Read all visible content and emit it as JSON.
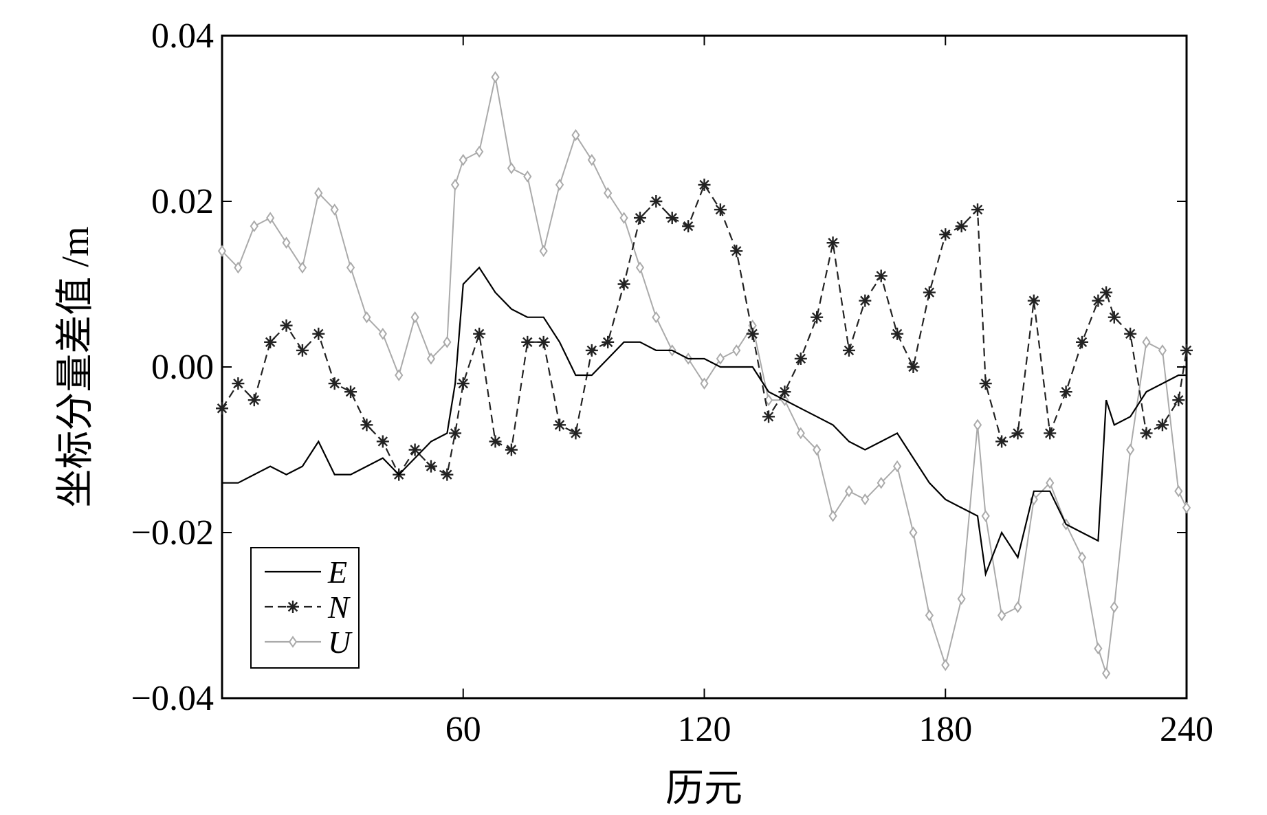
{
  "chart_data": {
    "type": "line",
    "xlabel": "历元",
    "ylabel": "坐标分量差值 /m",
    "xlim": [
      0,
      240
    ],
    "ylim": [
      -0.04,
      0.04
    ],
    "x_ticks": [
      60,
      120,
      180,
      240
    ],
    "x_tick_labels": [
      "60",
      "120",
      "180",
      "240"
    ],
    "y_ticks": [
      0.04,
      0.02,
      0.0,
      -0.02,
      -0.04
    ],
    "y_tick_labels": [
      "0.04",
      "0.02",
      "0.00",
      "−0.02",
      "−0.04"
    ],
    "grid": false,
    "legend_position": "lower-left",
    "x": [
      0,
      4,
      8,
      12,
      16,
      20,
      24,
      28,
      32,
      36,
      40,
      44,
      48,
      52,
      56,
      58,
      60,
      64,
      68,
      72,
      76,
      80,
      84,
      88,
      92,
      96,
      100,
      104,
      108,
      112,
      116,
      120,
      124,
      128,
      132,
      136,
      140,
      144,
      148,
      152,
      156,
      160,
      164,
      168,
      172,
      176,
      180,
      184,
      188,
      190,
      194,
      198,
      202,
      206,
      210,
      214,
      218,
      220,
      222,
      226,
      230,
      234,
      238,
      240
    ],
    "series": [
      {
        "name": "E",
        "color": "#000000",
        "style": "solid",
        "marker": "none",
        "values": [
          -0.014,
          -0.014,
          -0.013,
          -0.012,
          -0.013,
          -0.012,
          -0.009,
          -0.013,
          -0.013,
          -0.012,
          -0.011,
          -0.013,
          -0.011,
          -0.009,
          -0.008,
          -0.002,
          0.01,
          0.012,
          0.009,
          0.007,
          0.006,
          0.006,
          0.003,
          -0.001,
          -0.001,
          0.001,
          0.003,
          0.003,
          0.002,
          0.002,
          0.001,
          0.001,
          0.0,
          0.0,
          0.0,
          -0.003,
          -0.004,
          -0.005,
          -0.006,
          -0.007,
          -0.009,
          -0.01,
          -0.009,
          -0.008,
          -0.011,
          -0.014,
          -0.016,
          -0.017,
          -0.018,
          -0.025,
          -0.02,
          -0.023,
          -0.015,
          -0.015,
          -0.019,
          -0.02,
          -0.021,
          -0.004,
          -0.007,
          -0.006,
          -0.003,
          -0.002,
          -0.001,
          -0.001
        ]
      },
      {
        "name": "N",
        "color": "#222222",
        "style": "dashed",
        "marker": "asterisk",
        "values": [
          -0.005,
          -0.002,
          -0.004,
          0.003,
          0.005,
          0.002,
          0.004,
          -0.002,
          -0.003,
          -0.007,
          -0.009,
          -0.013,
          -0.01,
          -0.012,
          -0.013,
          -0.008,
          -0.002,
          0.004,
          -0.009,
          -0.01,
          0.003,
          0.003,
          -0.007,
          -0.008,
          0.002,
          0.003,
          0.01,
          0.018,
          0.02,
          0.018,
          0.017,
          0.022,
          0.019,
          0.014,
          0.004,
          -0.006,
          -0.003,
          0.001,
          0.006,
          0.015,
          0.002,
          0.008,
          0.011,
          0.004,
          0.0,
          0.009,
          0.016,
          0.017,
          0.019,
          -0.002,
          -0.009,
          -0.008,
          0.008,
          -0.008,
          -0.003,
          0.003,
          0.008,
          0.009,
          0.006,
          0.004,
          -0.008,
          -0.007,
          -0.004,
          0.002
        ]
      },
      {
        "name": "U",
        "color": "#aaaaaa",
        "style": "solid",
        "marker": "diamond",
        "values": [
          0.014,
          0.012,
          0.017,
          0.018,
          0.015,
          0.012,
          0.021,
          0.019,
          0.012,
          0.006,
          0.004,
          -0.001,
          0.006,
          0.001,
          0.003,
          0.022,
          0.025,
          0.026,
          0.035,
          0.024,
          0.023,
          0.014,
          0.022,
          0.028,
          0.025,
          0.021,
          0.018,
          0.012,
          0.006,
          0.002,
          0.001,
          -0.002,
          0.001,
          0.002,
          0.005,
          -0.004,
          -0.004,
          -0.008,
          -0.01,
          -0.018,
          -0.015,
          -0.016,
          -0.014,
          -0.012,
          -0.02,
          -0.03,
          -0.036,
          -0.028,
          -0.007,
          -0.018,
          -0.03,
          -0.029,
          -0.016,
          -0.014,
          -0.019,
          -0.023,
          -0.034,
          -0.037,
          -0.029,
          -0.01,
          0.003,
          0.002,
          -0.015,
          -0.017
        ]
      }
    ]
  }
}
